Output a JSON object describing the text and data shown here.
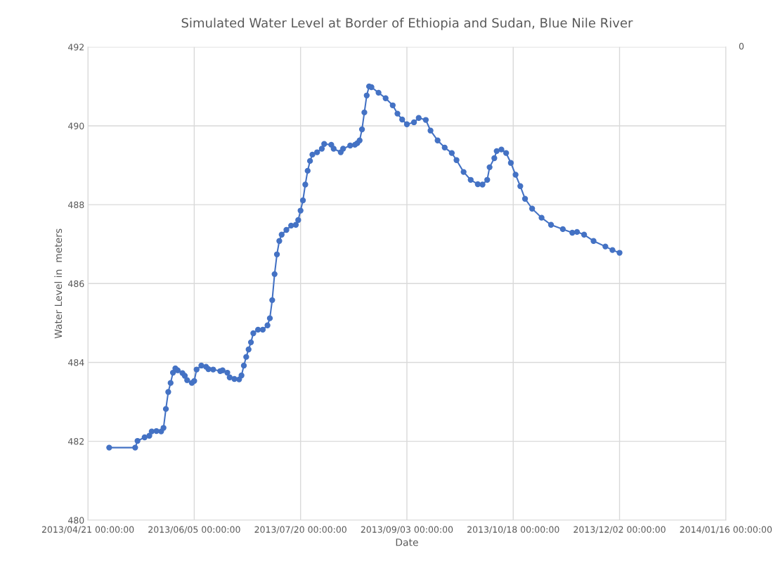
{
  "chart_data": {
    "type": "line",
    "title": "Simulated Water Level at Border of Ethiopia and Sudan, Blue Nile River",
    "xlabel": "Date",
    "ylabel": "Water Level in  meters",
    "x": [
      "2013-04-30",
      "2013-05-11",
      "2013-05-12",
      "2013-05-15",
      "2013-05-17",
      "2013-05-18",
      "2013-05-20",
      "2013-05-22",
      "2013-05-23",
      "2013-05-24",
      "2013-05-25",
      "2013-05-26",
      "2013-05-27",
      "2013-05-28",
      "2013-05-29",
      "2013-05-31",
      "2013-06-01",
      "2013-06-02",
      "2013-06-04",
      "2013-06-05",
      "2013-06-06",
      "2013-06-08",
      "2013-06-10",
      "2013-06-11",
      "2013-06-13",
      "2013-06-16",
      "2013-06-17",
      "2013-06-19",
      "2013-06-20",
      "2013-06-22",
      "2013-06-24",
      "2013-06-25",
      "2013-06-26",
      "2013-06-27",
      "2013-06-28",
      "2013-06-29",
      "2013-06-30",
      "2013-07-02",
      "2013-07-04",
      "2013-07-06",
      "2013-07-07",
      "2013-07-08",
      "2013-07-09",
      "2013-07-10",
      "2013-07-11",
      "2013-07-12",
      "2013-07-14",
      "2013-07-16",
      "2013-07-18",
      "2013-07-19",
      "2013-07-20",
      "2013-07-21",
      "2013-07-22",
      "2013-07-23",
      "2013-07-24",
      "2013-07-25",
      "2013-07-27",
      "2013-07-29",
      "2013-07-30",
      "2013-08-02",
      "2013-08-03",
      "2013-08-06",
      "2013-08-07",
      "2013-08-10",
      "2013-08-12",
      "2013-08-13",
      "2013-08-14",
      "2013-08-15",
      "2013-08-16",
      "2013-08-17",
      "2013-08-18",
      "2013-08-19",
      "2013-08-22",
      "2013-08-25",
      "2013-08-28",
      "2013-08-30",
      "2013-09-01",
      "2013-09-03",
      "2013-09-06",
      "2013-09-08",
      "2013-09-11",
      "2013-09-13",
      "2013-09-16",
      "2013-09-19",
      "2013-09-22",
      "2013-09-24",
      "2013-09-27",
      "2013-09-30",
      "2013-10-03",
      "2013-10-05",
      "2013-10-07",
      "2013-10-08",
      "2013-10-10",
      "2013-10-11",
      "2013-10-13",
      "2013-10-15",
      "2013-10-17",
      "2013-10-19",
      "2013-10-21",
      "2013-10-23",
      "2013-10-26",
      "2013-10-30",
      "2013-11-03",
      "2013-11-08",
      "2013-11-12",
      "2013-11-14",
      "2013-11-17",
      "2013-11-21",
      "2013-11-26",
      "2013-11-29",
      "2013-12-02"
    ],
    "series": [
      {
        "color": "#4472c4",
        "values": [
          481.84,
          481.84,
          482.01,
          482.1,
          482.14,
          482.25,
          482.26,
          482.25,
          482.34,
          482.82,
          483.25,
          483.48,
          483.74,
          483.85,
          483.8,
          483.73,
          483.66,
          483.55,
          483.48,
          483.53,
          483.82,
          483.92,
          483.89,
          483.83,
          483.82,
          483.78,
          483.8,
          483.74,
          483.62,
          483.58,
          483.57,
          483.67,
          483.92,
          484.14,
          484.33,
          484.51,
          484.74,
          484.83,
          484.83,
          484.94,
          485.12,
          485.58,
          486.24,
          486.74,
          487.08,
          487.24,
          487.36,
          487.47,
          487.49,
          487.61,
          487.85,
          488.11,
          488.51,
          488.86,
          489.11,
          489.27,
          489.33,
          489.42,
          489.54,
          489.52,
          489.42,
          489.33,
          489.42,
          489.5,
          489.52,
          489.56,
          489.63,
          489.91,
          490.34,
          490.77,
          491.0,
          490.98,
          490.84,
          490.7,
          490.52,
          490.31,
          490.16,
          490.04,
          490.09,
          490.2,
          490.15,
          489.88,
          489.63,
          489.45,
          489.31,
          489.13,
          488.83,
          488.63,
          488.52,
          488.51,
          488.63,
          488.95,
          489.18,
          489.36,
          489.4,
          489.31,
          489.06,
          488.76,
          488.47,
          488.15,
          487.9,
          487.67,
          487.49,
          487.38,
          487.29,
          487.31,
          487.24,
          487.08,
          486.94,
          486.85,
          486.78
        ]
      }
    ],
    "xlim": [
      "2013-04-21",
      "2014-01-16"
    ],
    "xticks": [
      {
        "value": "2013-04-21",
        "label": "2013/04/21 00:00:00"
      },
      {
        "value": "2013-06-05",
        "label": "2013/06/05 00:00:00"
      },
      {
        "value": "2013-07-20",
        "label": "2013/07/20 00:00:00"
      },
      {
        "value": "2013-09-03",
        "label": "2013/09/03 00:00:00"
      },
      {
        "value": "2013-10-18",
        "label": "2013/10/18 00:00:00"
      },
      {
        "value": "2013-12-02",
        "label": "2013/12/02 00:00:00"
      },
      {
        "value": "2014-01-16",
        "label": "2014/01/16 00:00:00"
      }
    ],
    "ylim": [
      480,
      492
    ],
    "yticks": [
      480,
      482,
      484,
      486,
      488,
      490,
      492
    ],
    "annotations": [
      "0"
    ],
    "grid": true,
    "marker": "circle",
    "line_style": "solid"
  }
}
